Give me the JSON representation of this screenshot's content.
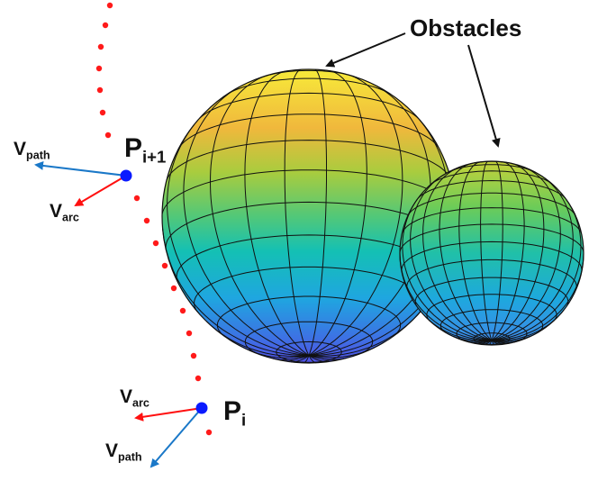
{
  "title_label": "Obstacles",
  "points": {
    "p_next": {
      "main": "P",
      "sub": "i+1"
    },
    "p_curr": {
      "main": "P",
      "sub": "i"
    }
  },
  "vectors": {
    "v_path_next": {
      "main": "V",
      "sub": "path"
    },
    "v_arc_next": {
      "main": "V",
      "sub": "arc"
    },
    "v_arc_curr": {
      "main": "V",
      "sub": "arc"
    },
    "v_path_curr": {
      "main": "V",
      "sub": "path"
    }
  },
  "colors": {
    "path_dots": "#ff1a1a",
    "waypoint": "#0a1aff",
    "v_path": "#1a78c8",
    "v_arc": "#ff1010",
    "sphere_top": "#f5e23a",
    "sphere_bottom": "#4a55e8"
  }
}
